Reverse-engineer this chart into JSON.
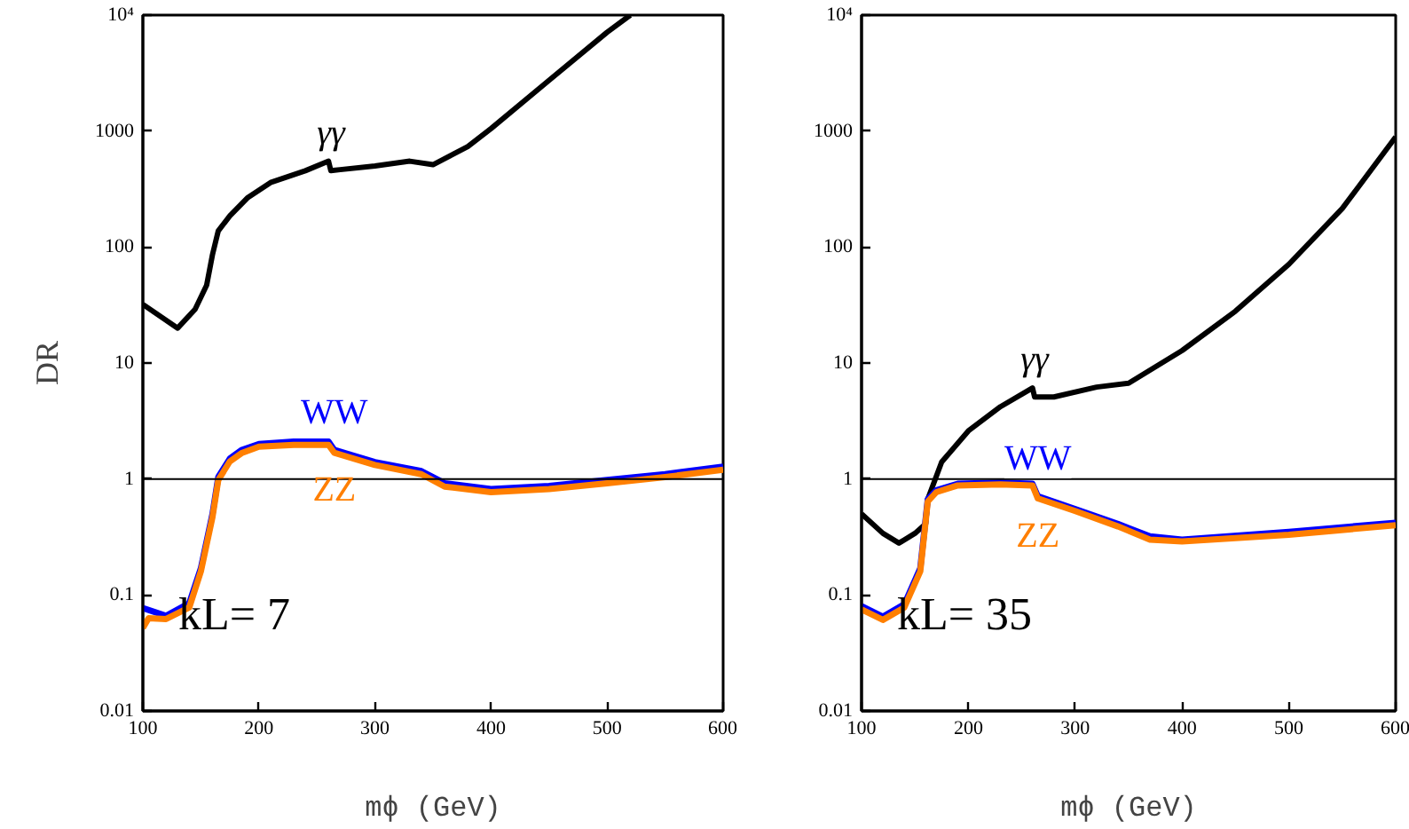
{
  "chart_data": [
    {
      "type": "line",
      "ylabel": "DR",
      "xlabel": "mϕ (GeV)",
      "log": "y",
      "grid": false,
      "legend": false,
      "marker": "none",
      "line_style": "solid",
      "xlim": [
        100,
        600
      ],
      "xticks": [
        100,
        200,
        300,
        400,
        500,
        600
      ],
      "ylim": [
        0.01,
        10000
      ],
      "yticks": [
        0.01,
        0.1,
        1,
        10,
        100,
        1000,
        {
          "value": 10000,
          "label": "10⁴"
        }
      ],
      "ref_lines": [
        {
          "axis": "y",
          "value": 1,
          "color": "#000000"
        }
      ],
      "series": [
        {
          "name": "γγ",
          "color": "#000000",
          "x": [
            100,
            130,
            145,
            155,
            160,
            165,
            175,
            190,
            210,
            240,
            260,
            262,
            270,
            300,
            330,
            350,
            380,
            400,
            450,
            500,
            520
          ],
          "values": [
            32,
            20,
            29,
            47,
            86,
            138,
            186,
            265,
            360,
            455,
            550,
            455,
            465,
            500,
            550,
            513,
            735,
            1050,
            2740,
            7100,
            10000
          ]
        },
        {
          "name": "WW",
          "color": "#0000ff",
          "x": [
            100,
            120,
            140,
            150,
            160,
            165,
            175,
            185,
            200,
            230,
            260,
            265,
            300,
            340,
            360,
            400,
            450,
            500,
            550,
            600
          ],
          "values": [
            0.077,
            0.066,
            0.085,
            0.17,
            0.5,
            1.04,
            1.5,
            1.78,
            2.0,
            2.1,
            2.1,
            1.78,
            1.4,
            1.17,
            0.92,
            0.82,
            0.87,
            0.98,
            1.1,
            1.28
          ]
        },
        {
          "name": "ZZ",
          "color": "#ff7f00",
          "x": [
            100,
            105,
            120,
            140,
            150,
            160,
            165,
            175,
            185,
            200,
            230,
            260,
            265,
            300,
            340,
            360,
            400,
            450,
            500,
            550,
            600
          ],
          "values": [
            0.052,
            0.063,
            0.062,
            0.078,
            0.16,
            0.47,
            0.98,
            1.42,
            1.67,
            1.9,
            1.97,
            1.97,
            1.68,
            1.32,
            1.1,
            0.86,
            0.77,
            0.82,
            0.92,
            1.04,
            1.2
          ]
        }
      ],
      "annotations": [
        "kL= 7"
      ]
    },
    {
      "type": "line",
      "xlabel": "mϕ (GeV)",
      "log": "y",
      "grid": false,
      "legend": false,
      "marker": "none",
      "line_style": "solid",
      "xlim": [
        100,
        600
      ],
      "xticks": [
        100,
        200,
        300,
        400,
        500,
        600
      ],
      "ylim": [
        0.01,
        10000
      ],
      "yticks": [
        0.01,
        0.1,
        1,
        10,
        100,
        1000,
        {
          "value": 10000,
          "label": "10⁴"
        }
      ],
      "ref_lines": [
        {
          "axis": "y",
          "value": 1,
          "color": "#000000"
        }
      ],
      "series": [
        {
          "name": "γγ",
          "color": "#000000",
          "x": [
            100,
            120,
            135,
            150,
            160,
            162,
            175,
            200,
            230,
            260,
            262,
            280,
            320,
            350,
            400,
            450,
            500,
            550,
            600
          ],
          "values": [
            0.5,
            0.34,
            0.28,
            0.34,
            0.41,
            0.67,
            1.4,
            2.6,
            4.2,
            6.1,
            5.1,
            5.1,
            6.2,
            6.7,
            12.8,
            28,
            71,
            215,
            890
          ]
        },
        {
          "name": "WW",
          "color": "#0000ff",
          "x": [
            100,
            120,
            140,
            155,
            162,
            170,
            190,
            230,
            260,
            265,
            300,
            340,
            370,
            400,
            500,
            600
          ],
          "values": [
            0.08,
            0.065,
            0.083,
            0.17,
            0.67,
            0.8,
            0.91,
            0.93,
            0.91,
            0.71,
            0.55,
            0.41,
            0.32,
            0.3,
            0.35,
            0.42
          ]
        },
        {
          "name": "ZZ",
          "color": "#ff7f00",
          "x": [
            100,
            120,
            140,
            155,
            162,
            170,
            190,
            230,
            260,
            265,
            300,
            340,
            370,
            400,
            500,
            600
          ],
          "values": [
            0.075,
            0.061,
            0.078,
            0.16,
            0.64,
            0.77,
            0.88,
            0.9,
            0.88,
            0.68,
            0.53,
            0.39,
            0.3,
            0.29,
            0.33,
            0.4
          ]
        }
      ],
      "annotations": [
        "kL= 35"
      ]
    }
  ]
}
